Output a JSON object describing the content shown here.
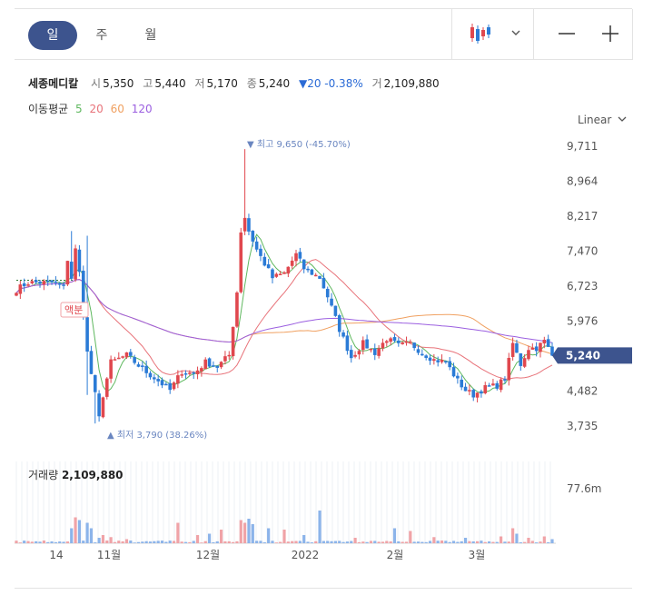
{
  "tabs": [
    {
      "label": "일",
      "active": true
    },
    {
      "label": "주",
      "active": false
    },
    {
      "label": "월",
      "active": false
    }
  ],
  "toolbar": {
    "chart_type_icon": "candlestick-icon",
    "dropdown_icon": "chevron-down-icon",
    "zoom_out_icon": "minus-icon",
    "zoom_in_icon": "plus-icon"
  },
  "stock": {
    "name": "세종메디칼",
    "open_label": "시",
    "open": "5,350",
    "high_label": "고",
    "high": "5,440",
    "low_label": "저",
    "low": "5,170",
    "close_label": "종",
    "close": "5,240",
    "change": "▼20 -0.38%",
    "volume_label": "거",
    "volume": "2,109,880"
  },
  "ma_legend": {
    "label": "이동평균",
    "items": [
      {
        "label": "5",
        "color": "#5fb85f"
      },
      {
        "label": "20",
        "color": "#e8737a"
      },
      {
        "label": "60",
        "color": "#f0a060"
      },
      {
        "label": "120",
        "color": "#9b5fe0"
      }
    ]
  },
  "scale": {
    "label": "Linear"
  },
  "colors": {
    "up": "#e0474e",
    "down": "#2b7bd6",
    "accent": "#3d548e",
    "marker": "#6a86c0"
  },
  "chart_data": {
    "type": "candlestick",
    "yticks": [
      "9,711",
      "8,964",
      "8,217",
      "7,470",
      "6,723",
      "5,976",
      "4,482",
      "3,735"
    ],
    "ylim": [
      3400,
      10000
    ],
    "current_price_label": "5,240",
    "high_marker": "▼ 최고 9,650 (-45.70%)",
    "low_marker": "▲ 최저 3,790 (38.26%)",
    "split_label": "액분",
    "xticks": [
      "14",
      "11월",
      "12월",
      "2022",
      "2월",
      "3월"
    ],
    "volume_title": "거래량",
    "volume_value": "2,109,880",
    "volume_max_label": "77.6m",
    "volume_ymax": 80
  }
}
